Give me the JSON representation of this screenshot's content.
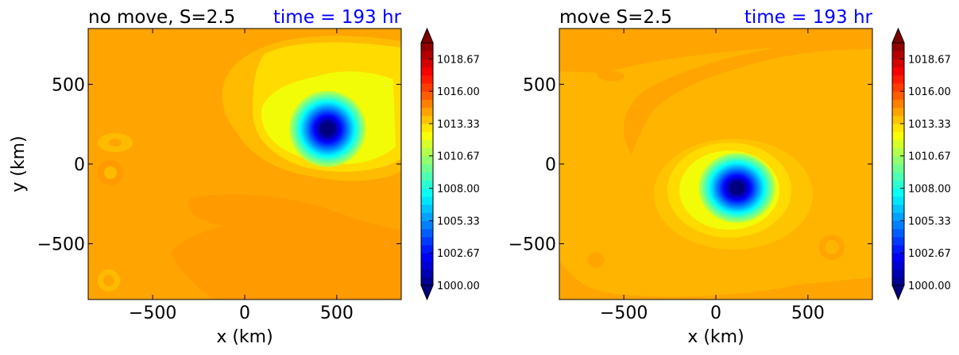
{
  "chart_data": [
    {
      "type": "heatmap",
      "title": "no move, S=2.5",
      "time_label": "time = 193 hr",
      "xlabel": "x (km)",
      "ylabel": "y (km)",
      "xlim": [
        -850,
        850
      ],
      "ylim": [
        -850,
        850
      ],
      "xticks": [
        -500,
        0,
        500
      ],
      "yticks": [
        500,
        0,
        -500
      ],
      "xtick_labels": [
        "−500",
        "0",
        "500"
      ],
      "ytick_labels": [
        "500",
        "0",
        "−500"
      ],
      "vortex_center": {
        "x": 450,
        "y": 220
      },
      "min_pressure": 1000.0,
      "background_pressure": 1016.0,
      "colorbar": {
        "range": [
          1000.0,
          1020.0
        ],
        "ticks": [
          1000.0,
          1002.67,
          1005.33,
          1008.0,
          1010.67,
          1013.33,
          1016.0,
          1018.67
        ],
        "tick_labels": [
          "1000.00",
          "1002.67",
          "1005.33",
          "1008.00",
          "1010.67",
          "1013.33",
          "1016.00",
          "1018.67"
        ],
        "extend": "both",
        "colormap": "jet"
      }
    },
    {
      "type": "heatmap",
      "title": "move S=2.5",
      "time_label": "time = 193 hr",
      "xlabel": "x (km)",
      "ylabel": "",
      "xlim": [
        -850,
        850
      ],
      "ylim": [
        -850,
        850
      ],
      "xticks": [
        -500,
        0,
        500
      ],
      "yticks": [
        500,
        0,
        -500
      ],
      "xtick_labels": [
        "−500",
        "0",
        "500"
      ],
      "ytick_labels": [
        "500",
        "0",
        "−500"
      ],
      "vortex_center": {
        "x": 115,
        "y": -150
      },
      "min_pressure": 1000.0,
      "background_pressure": 1016.0,
      "colorbar": {
        "range": [
          1000.0,
          1020.0
        ],
        "ticks": [
          1000.0,
          1002.67,
          1005.33,
          1008.0,
          1010.67,
          1013.33,
          1016.0,
          1018.67
        ],
        "tick_labels": [
          "1000.00",
          "1002.67",
          "1005.33",
          "1008.00",
          "1010.67",
          "1013.33",
          "1016.00",
          "1018.67"
        ],
        "extend": "both",
        "colormap": "jet"
      }
    }
  ]
}
